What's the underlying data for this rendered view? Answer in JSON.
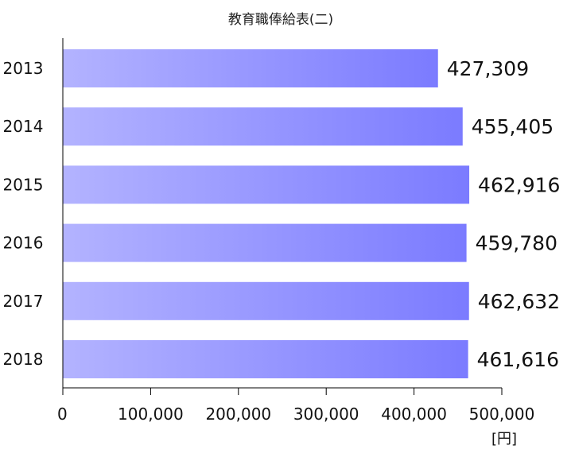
{
  "chart_data": {
    "type": "bar",
    "orientation": "horizontal",
    "title": "教育職俸給表(二)",
    "unit": "[円]",
    "categories": [
      "2013",
      "2014",
      "2015",
      "2016",
      "2017",
      "2018"
    ],
    "values": [
      427309,
      455405,
      462916,
      459780,
      462632,
      461616
    ],
    "value_labels": [
      "427,309",
      "455,405",
      "462,916",
      "459,780",
      "462,632",
      "461,616"
    ],
    "xlim": [
      0,
      500000
    ],
    "x_ticks": [
      0,
      100000,
      200000,
      300000,
      400000,
      500000
    ],
    "x_tick_labels": [
      "0",
      "100,000",
      "200,000",
      "300,000",
      "400,000",
      "500,000"
    ],
    "grid": false,
    "legend": "none",
    "colors": {
      "bar_gradient_start": "#b3b3ff",
      "bar_gradient_end": "#7b7bff"
    }
  }
}
